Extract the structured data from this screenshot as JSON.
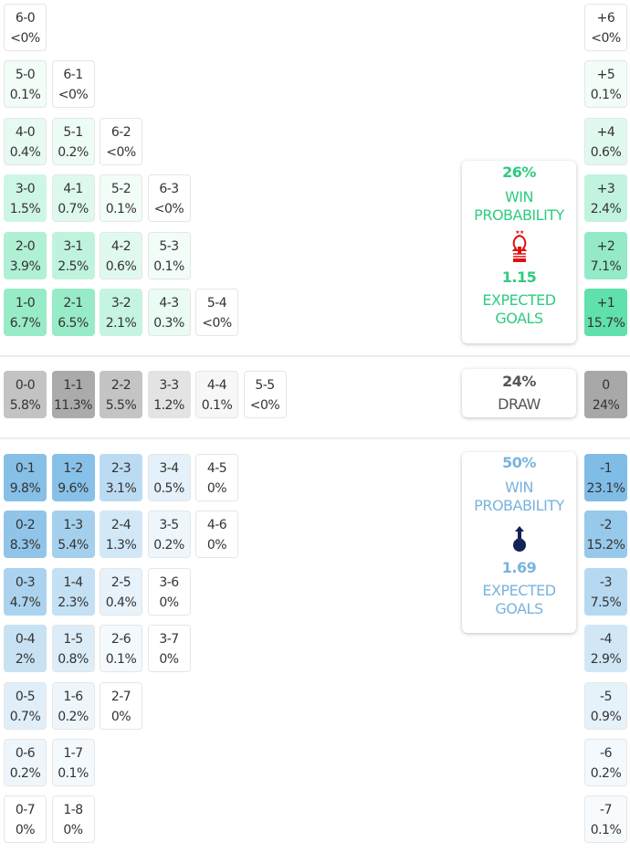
{
  "colors": {
    "home_accent": "#2ecc80",
    "away_accent": "#7ab3dc",
    "home_cell": "#5ee0a9",
    "away_cell": "#7fbce6",
    "draw_cell": "#a8a8a8"
  },
  "home": {
    "rows": [
      [
        [
          "6-0",
          "<0%"
        ]
      ],
      [
        [
          "5-0",
          "0.1%"
        ],
        [
          "6-1",
          "<0%"
        ]
      ],
      [
        [
          "4-0",
          "0.4%"
        ],
        [
          "5-1",
          "0.2%"
        ],
        [
          "6-2",
          "<0%"
        ]
      ],
      [
        [
          "3-0",
          "1.5%"
        ],
        [
          "4-1",
          "0.7%"
        ],
        [
          "5-2",
          "0.1%"
        ],
        [
          "6-3",
          "<0%"
        ]
      ],
      [
        [
          "2-0",
          "3.9%"
        ],
        [
          "3-1",
          "2.5%"
        ],
        [
          "4-2",
          "0.6%"
        ],
        [
          "5-3",
          "0.1%"
        ]
      ],
      [
        [
          "1-0",
          "6.7%"
        ],
        [
          "2-1",
          "6.5%"
        ],
        [
          "3-2",
          "2.1%"
        ],
        [
          "4-3",
          "0.3%"
        ],
        [
          "5-4",
          "<0%"
        ]
      ]
    ],
    "margins": [
      [
        "+6",
        "<0%"
      ],
      [
        "+5",
        "0.1%"
      ],
      [
        "+4",
        "0.6%"
      ],
      [
        "+3",
        "2.4%"
      ],
      [
        "+2",
        "7.1%"
      ],
      [
        "+1",
        "15.7%"
      ]
    ],
    "card": {
      "win_pct": "26%",
      "win_label_1": "WIN",
      "win_label_2": "PROBABILITY",
      "crest": "nottingham-forest-crest",
      "xg": "1.15",
      "xg_label_1": "EXPECTED",
      "xg_label_2": "GOALS"
    }
  },
  "draw": {
    "row": [
      [
        "0-0",
        "5.8%"
      ],
      [
        "1-1",
        "11.3%"
      ],
      [
        "2-2",
        "5.5%"
      ],
      [
        "3-3",
        "1.2%"
      ],
      [
        "4-4",
        "0.1%"
      ],
      [
        "5-5",
        "<0%"
      ]
    ],
    "margin": [
      "0",
      "24%"
    ],
    "card": {
      "pct": "24%",
      "label": "DRAW"
    }
  },
  "away": {
    "rows": [
      [
        [
          "0-1",
          "9.8%"
        ],
        [
          "1-2",
          "9.6%"
        ],
        [
          "2-3",
          "3.1%"
        ],
        [
          "3-4",
          "0.5%"
        ],
        [
          "4-5",
          "0%"
        ]
      ],
      [
        [
          "0-2",
          "8.3%"
        ],
        [
          "1-3",
          "5.4%"
        ],
        [
          "2-4",
          "1.3%"
        ],
        [
          "3-5",
          "0.2%"
        ],
        [
          "4-6",
          "0%"
        ]
      ],
      [
        [
          "0-3",
          "4.7%"
        ],
        [
          "1-4",
          "2.3%"
        ],
        [
          "2-5",
          "0.4%"
        ],
        [
          "3-6",
          "0%"
        ]
      ],
      [
        [
          "0-4",
          "2%"
        ],
        [
          "1-5",
          "0.8%"
        ],
        [
          "2-6",
          "0.1%"
        ],
        [
          "3-7",
          "0%"
        ]
      ],
      [
        [
          "0-5",
          "0.7%"
        ],
        [
          "1-6",
          "0.2%"
        ],
        [
          "2-7",
          "0%"
        ]
      ],
      [
        [
          "0-6",
          "0.2%"
        ],
        [
          "1-7",
          "0.1%"
        ]
      ],
      [
        [
          "0-7",
          "0%"
        ],
        [
          "1-8",
          "0%"
        ]
      ]
    ],
    "margins": [
      [
        "-1",
        "23.1%"
      ],
      [
        "-2",
        "15.2%"
      ],
      [
        "-3",
        "7.5%"
      ],
      [
        "-4",
        "2.9%"
      ],
      [
        "-5",
        "0.9%"
      ],
      [
        "-6",
        "0.2%"
      ],
      [
        "-7",
        "0.1%"
      ]
    ],
    "card": {
      "win_pct": "50%",
      "win_label_1": "WIN",
      "win_label_2": "PROBABILITY",
      "crest": "tottenham-crest",
      "xg": "1.69",
      "xg_label_1": "EXPECTED",
      "xg_label_2": "GOALS"
    }
  }
}
